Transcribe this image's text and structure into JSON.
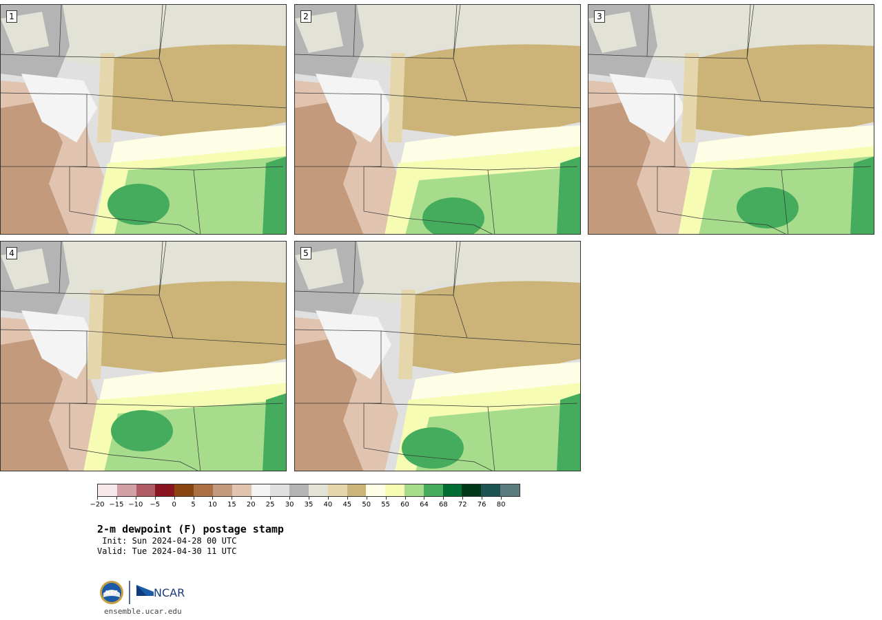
{
  "panels": [
    {
      "label": "1"
    },
    {
      "label": "2"
    },
    {
      "label": "3"
    },
    {
      "label": "4"
    },
    {
      "label": "5"
    }
  ],
  "colorbar": {
    "colors": [
      "#f6e8ea",
      "#d4a0a8",
      "#b05a64",
      "#8a1420",
      "#8a4410",
      "#aa7044",
      "#c49a7c",
      "#e0c4b0",
      "#f4f4f4",
      "#e0e0e0",
      "#b4b4b4",
      "#e2e2d6",
      "#e6d6ac",
      "#ccb478",
      "#fefee6",
      "#f6fcb4",
      "#a6dc8c",
      "#44ac5c",
      "#006c34",
      "#00381c",
      "#1c5452",
      "#5a7c7c"
    ],
    "tick_labels": [
      "−20",
      "−15",
      "−10",
      "−5",
      "0",
      "5",
      "10",
      "15",
      "20",
      "25",
      "30",
      "35",
      "40",
      "45",
      "50",
      "55",
      "60",
      "64",
      "68",
      "72",
      "76",
      "80"
    ]
  },
  "title": "2-m dewpoint (F) postage stamp",
  "init": " Init: Sun 2024-04-28 00 UTC",
  "valid": "Valid: Tue 2024-04-30 11 UTC",
  "logos": {
    "nsf": "NSF",
    "ncar": "NCAR"
  },
  "site": "ensemble.ucar.edu"
}
